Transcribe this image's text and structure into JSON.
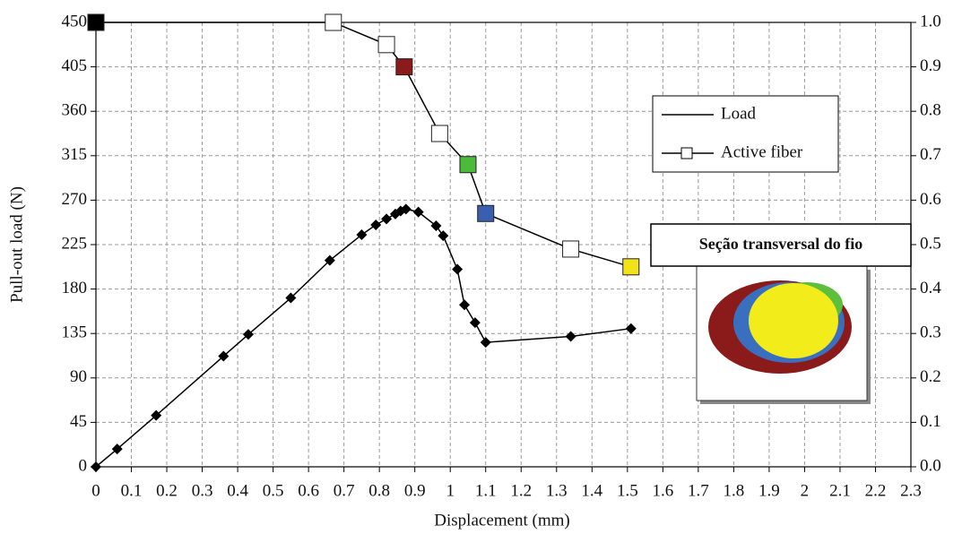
{
  "chart_data": {
    "type": "line",
    "xlabel": "Displacement (mm)",
    "ylabel": "Pull-out load (N)",
    "xlim": [
      0,
      2.3
    ],
    "xticks": [
      0,
      0.1,
      0.2,
      0.3,
      0.4,
      0.5,
      0.6,
      0.7,
      0.8,
      0.9,
      1,
      1.1,
      1.2,
      1.3,
      1.4,
      1.5,
      1.6,
      1.7,
      1.8,
      1.9,
      2,
      2.1,
      2.2,
      2.3
    ],
    "ylim": [
      0,
      450
    ],
    "yticks": [
      0,
      45,
      90,
      135,
      180,
      225,
      270,
      315,
      360,
      405,
      450
    ],
    "y2lim": [
      0,
      1
    ],
    "y2ticks": [
      {
        "value": 0,
        "label": "0.0"
      },
      0.1,
      0.2,
      0.3,
      0.4,
      0.5,
      0.6,
      0.7,
      0.8,
      0.9,
      {
        "value": 1,
        "label": "1.0"
      }
    ],
    "grid": true,
    "legend": "upper right",
    "series": [
      {
        "name": "Load",
        "color": "#000000",
        "marker": "diamond",
        "x": [
          0,
          0.06,
          0.17,
          0.36,
          0.43,
          0.55,
          0.66,
          0.75,
          0.79,
          0.82,
          0.845,
          0.86,
          0.875,
          0.91,
          0.96,
          0.98,
          1.02,
          1.04,
          1.07,
          1.1,
          1.34,
          1.51
        ],
        "values": [
          0,
          18,
          52,
          112,
          134,
          171,
          209,
          235,
          245,
          251,
          256,
          259,
          261,
          258,
          244,
          234,
          200,
          164,
          146,
          126,
          132,
          140
        ]
      },
      {
        "name": "Active fiber",
        "color": "#000000",
        "marker": "square",
        "axis": "y2",
        "x": [
          0,
          0.67,
          0.82,
          0.87,
          0.97,
          1.05,
          1.1,
          1.34,
          1.51
        ],
        "values": [
          1,
          1,
          0.95,
          0.9,
          0.75,
          0.68,
          0.57,
          0.49,
          0.45
        ],
        "marker_colors": [
          "#000000",
          "#ffffff",
          "#ffffff",
          "#8b1a1a",
          "#ffffff",
          "#4cbb3c",
          "#3a5fb0",
          "#ffffff",
          "#f2e21a"
        ]
      }
    ],
    "inset_title": "Seção transversal do fio"
  }
}
